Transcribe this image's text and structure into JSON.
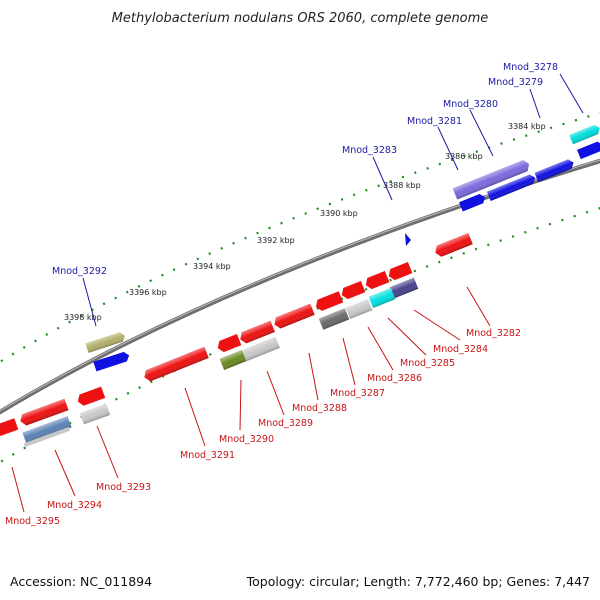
{
  "title": "Methylobacterium nodulans ORS 2060, complete genome",
  "footer": {
    "accession": "Accession: NC_011894",
    "summary": "Topology: circular; Length: 7,772,460 bp; Genes: 7,447"
  },
  "colors": {
    "backbone": "#7a7a7a",
    "tick_dots": "#1e8c1e",
    "label_blue": "#1a1aa6",
    "label_red": "#c81414",
    "gene_red": "#ee1111",
    "gene_blue": "#1010e0",
    "marker": "#1010e0"
  },
  "kbp_labels": [
    "3384 kbp",
    "3386 kbp",
    "3388 kbp",
    "3390 kbp",
    "3392 kbp",
    "3394 kbp",
    "3396 kbp",
    "3398 kbp"
  ],
  "genes_top": [
    {
      "name": "Mnod_3278",
      "color": "#00dcdc"
    },
    {
      "name": "Mnod_3279",
      "color": "#1010e0"
    },
    {
      "name": "Mnod_3280",
      "color": "#1010e0"
    },
    {
      "name": "Mnod_3281",
      "color": "#1010e0"
    },
    {
      "name": "Mnod_3283",
      "color": "#7a6adc"
    },
    {
      "name": "Mnod_3292",
      "color": "#b2ae6a"
    }
  ],
  "genes_bottom": [
    {
      "name": "Mnod_3282",
      "color": "#ee1111"
    },
    {
      "name": "Mnod_3284",
      "color": "#4a428e"
    },
    {
      "name": "Mnod_3285",
      "color": "#00e0e0"
    },
    {
      "name": "Mnod_3286",
      "color": "#c8c8c8"
    },
    {
      "name": "Mnod_3287",
      "color": "#6a6a6a"
    },
    {
      "name": "Mnod_3288",
      "color": "#ee1111"
    },
    {
      "name": "Mnod_3289",
      "color": "#c8c8c8"
    },
    {
      "name": "Mnod_3290",
      "color": "#6a8a22"
    },
    {
      "name": "Mnod_3291",
      "color": "#ee1111"
    },
    {
      "name": "Mnod_3293",
      "color": "#c8c8c8"
    },
    {
      "name": "Mnod_3294",
      "color": "#5a82b4"
    },
    {
      "name": "Mnod_3295",
      "color": "#ee1111"
    }
  ]
}
